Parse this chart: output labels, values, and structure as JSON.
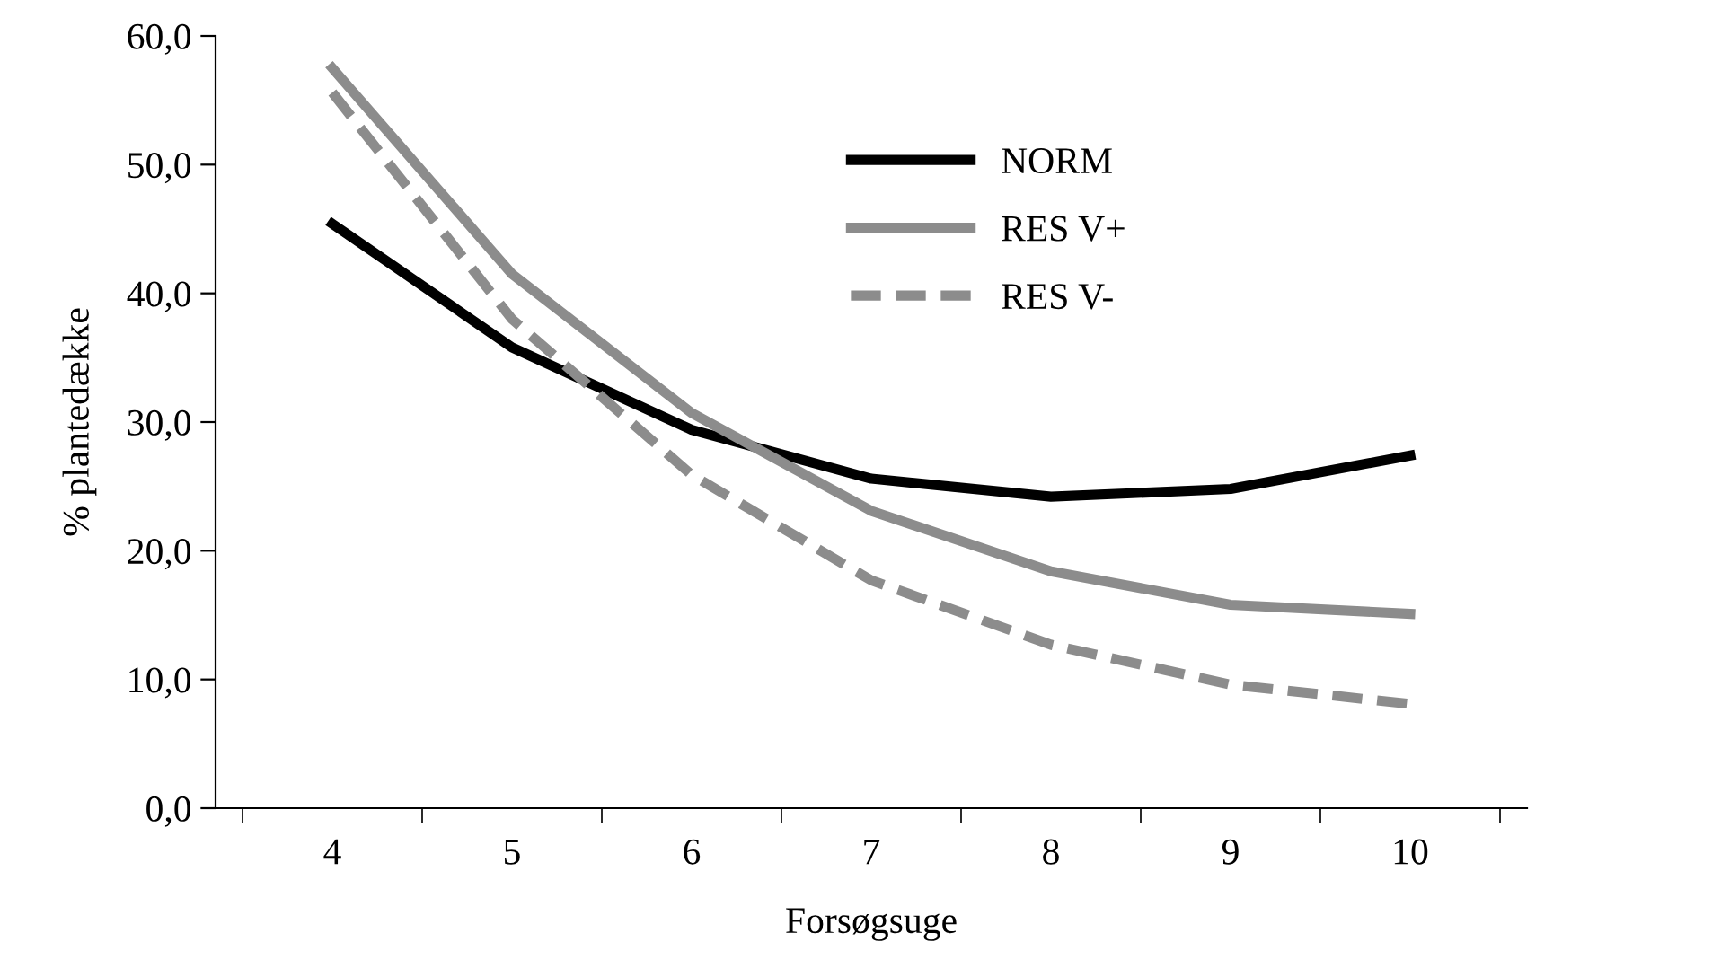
{
  "chart_data": {
    "type": "line",
    "xlabel": "Forsøgsuge",
    "ylabel": "% plantedække",
    "categories": [
      "4",
      "5",
      "6",
      "7",
      "8",
      "9",
      "10"
    ],
    "series": [
      {
        "name": "NORM",
        "color": "#000000",
        "line_style": "solid",
        "values": [
          45.4,
          35.8,
          29.4,
          25.6,
          24.2,
          24.8,
          27.4
        ]
      },
      {
        "name": "RES V+",
        "color": "#8c8c8c",
        "line_style": "solid",
        "values": [
          57.5,
          41.5,
          30.7,
          23.1,
          18.4,
          15.8,
          15.1
        ]
      },
      {
        "name": "RES V-",
        "color": "#8c8c8c",
        "line_style": "dashed",
        "values": [
          55.6,
          38.0,
          25.9,
          17.7,
          12.7,
          9.6,
          8.1
        ]
      }
    ],
    "ylim": [
      0,
      60
    ],
    "yticks": [
      {
        "value": 0,
        "label": "0,0"
      },
      {
        "value": 10,
        "label": "10,0"
      },
      {
        "value": 20,
        "label": "20,0"
      },
      {
        "value": 30,
        "label": "30,0"
      },
      {
        "value": 40,
        "label": "40,0"
      },
      {
        "value": 50,
        "label": "50,0"
      },
      {
        "value": 60,
        "label": "60,0"
      }
    ],
    "grid": false,
    "legend": "top right",
    "marker": "none"
  }
}
